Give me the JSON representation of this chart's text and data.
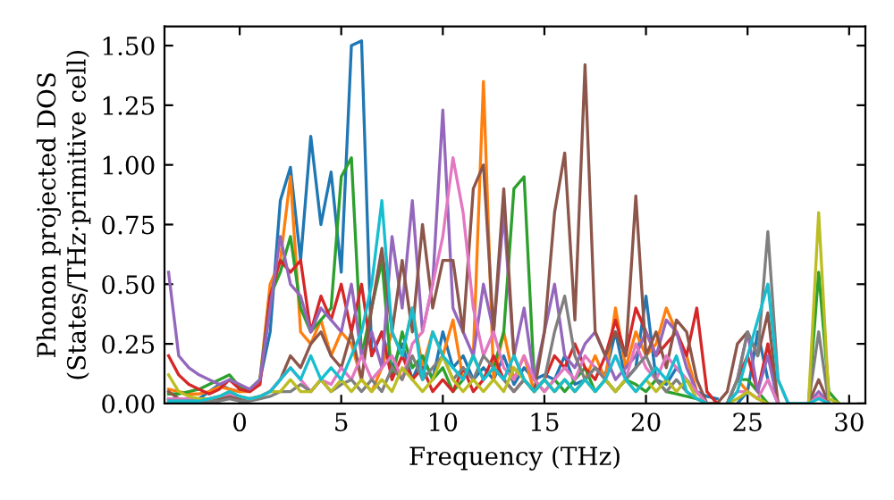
{
  "chart_data": {
    "type": "line",
    "xlabel": "Frequency (THz)",
    "ylabel": "Phonon projected DOS\n(States/THz·primitive cell)",
    "x": [
      -3.5,
      -3,
      -2.5,
      -2,
      -1.5,
      -1,
      -0.5,
      0,
      0.5,
      1,
      1.5,
      2,
      2.5,
      3,
      3.5,
      4,
      4.5,
      5,
      5.5,
      6,
      6.5,
      7,
      7.5,
      8,
      8.5,
      9,
      9.5,
      10,
      10.5,
      11,
      11.5,
      12,
      12.5,
      13,
      13.5,
      14,
      14.5,
      15,
      15.5,
      16,
      16.5,
      17,
      17.5,
      18,
      18.5,
      19,
      19.5,
      20,
      20.5,
      21,
      21.5,
      22,
      22.5,
      23,
      23.5,
      24,
      24.5,
      25,
      25.5,
      26,
      26.5,
      27,
      27.5,
      28,
      28.5,
      29,
      29.5
    ],
    "xlim": [
      -3.7,
      30.8
    ],
    "xticks": [
      0,
      5,
      10,
      15,
      20,
      25,
      30
    ],
    "ylim": [
      0,
      1.58
    ],
    "yticks": [
      {
        "value": 0,
        "label": "0.00"
      },
      {
        "value": 0.25,
        "label": "0.25"
      },
      {
        "value": 0.5,
        "label": "0.50"
      },
      {
        "value": 0.75,
        "label": "0.75"
      },
      {
        "value": 1.0,
        "label": "1.00"
      },
      {
        "value": 1.25,
        "label": "1.25"
      },
      {
        "value": 1.5,
        "label": "1.50"
      }
    ],
    "line_style": "solid",
    "marker": "none",
    "series": [
      {
        "color": "#1f77b4",
        "values": [
          0.02,
          0.01,
          0.01,
          0.02,
          0.05,
          0.08,
          0.06,
          0.05,
          0.06,
          0.1,
          0.3,
          0.85,
          0.99,
          0.6,
          1.12,
          0.75,
          0.97,
          0.55,
          1.5,
          1.52,
          0.2,
          0.3,
          0.15,
          0.25,
          0.1,
          0.2,
          0.1,
          0.3,
          0.15,
          0.2,
          0.1,
          0.15,
          0.1,
          0.2,
          0.08,
          0.15,
          0.1,
          0.12,
          0.1,
          0.2,
          0.08,
          0.1,
          0.15,
          0.12,
          0.3,
          0.1,
          0.15,
          0.45,
          0.1,
          0.08,
          0.15,
          0.1,
          0.05,
          0.03,
          0.02,
          null,
          0,
          0.05,
          0.3,
          0.1,
          0,
          null,
          null,
          null,
          null,
          null,
          null
        ]
      },
      {
        "color": "#ff7f0e",
        "values": [
          0.06,
          0.05,
          0.04,
          0.04,
          0.05,
          0.07,
          0.06,
          0.05,
          0.05,
          0.1,
          0.5,
          0.6,
          0.95,
          0.3,
          0.25,
          0.35,
          0.2,
          0.3,
          0.25,
          0.1,
          0.05,
          0.15,
          0.3,
          0.2,
          0.4,
          0.15,
          0.3,
          0.2,
          0.35,
          0.1,
          0.2,
          1.35,
          0.1,
          0.3,
          0.1,
          0.2,
          0.05,
          0.1,
          0.05,
          0.1,
          0.05,
          0.1,
          0.2,
          0.1,
          0.4,
          0.15,
          0.3,
          0.2,
          0.25,
          0.4,
          0.3,
          0.2,
          0.05,
          0,
          null,
          0,
          0.1,
          0.05,
          0.02,
          0,
          null,
          null,
          null,
          null,
          null,
          null,
          null
        ]
      },
      {
        "color": "#2ca02c",
        "values": [
          0.04,
          0.04,
          0.05,
          0.06,
          0.08,
          0.1,
          0.12,
          0.07,
          0.06,
          0.1,
          0.45,
          0.55,
          0.7,
          0.4,
          0.3,
          0.35,
          0.4,
          0.95,
          1.03,
          0.2,
          0.4,
          0.6,
          0.1,
          0.3,
          0.15,
          0.2,
          0.1,
          0.15,
          0.05,
          0.1,
          0.2,
          0.1,
          0.15,
          0.3,
          0.9,
          0.95,
          0.1,
          0.05,
          0.1,
          0.05,
          0.1,
          0.15,
          0.05,
          0.1,
          0.05,
          0.1,
          0.08,
          0.05,
          0.1,
          0.05,
          0.04,
          0.03,
          0.02,
          0,
          null,
          0,
          0.1,
          0.1,
          0.05,
          0,
          null,
          null,
          null,
          0,
          0.55,
          0.05,
          0
        ]
      },
      {
        "color": "#d62728",
        "values": [
          0.2,
          0.12,
          0.08,
          0.06,
          0.04,
          0.06,
          0.1,
          0.06,
          0.05,
          0.08,
          0.45,
          0.6,
          0.55,
          0.6,
          0.3,
          0.45,
          0.35,
          0.5,
          0.3,
          0.5,
          0.2,
          0.3,
          0.1,
          0.2,
          0.1,
          0.15,
          0.05,
          0.1,
          0.05,
          0.15,
          0.05,
          0.1,
          0.2,
          0.1,
          0.05,
          0.1,
          0.05,
          0.1,
          0.2,
          0.15,
          0.25,
          0.15,
          0.1,
          0.2,
          0.35,
          0.2,
          0.4,
          0.3,
          0.2,
          0.25,
          0.3,
          0.2,
          0.4,
          0.05,
          0,
          null,
          0.1,
          0.2,
          0.05,
          0.25,
          0,
          null,
          null,
          null,
          null,
          null,
          null
        ]
      },
      {
        "color": "#9467bd",
        "values": [
          0.55,
          0.2,
          0.15,
          0.12,
          0.1,
          0.08,
          0.1,
          0.08,
          0.06,
          0.1,
          0.4,
          0.7,
          0.5,
          0.45,
          0.3,
          0.4,
          0.35,
          0.3,
          0.5,
          0.2,
          0.3,
          0.15,
          0.7,
          0.4,
          0.85,
          0.3,
          0.5,
          1.23,
          0.4,
          0.3,
          0.2,
          0.5,
          0.3,
          0.8,
          0.2,
          0.4,
          0.1,
          0.3,
          0.5,
          0.2,
          0.15,
          0.25,
          0.3,
          0.2,
          0.1,
          0.15,
          0.2,
          0.3,
          0.2,
          0.35,
          0.3,
          0.15,
          0.05,
          0,
          null,
          0,
          0.1,
          0.3,
          0.05,
          0.2,
          0,
          null,
          null,
          0,
          0.05,
          0,
          null
        ]
      },
      {
        "color": "#8c564b",
        "values": [
          0.05,
          0.02,
          0.02,
          0.02,
          0.02,
          0.02,
          0.03,
          0.02,
          0.02,
          0.03,
          0.05,
          0.1,
          0.2,
          0.15,
          0.25,
          0.3,
          0.2,
          0.15,
          0.3,
          0.1,
          0.4,
          0.65,
          0.3,
          0.6,
          0.3,
          0.75,
          0.4,
          0.6,
          0.6,
          0.3,
          0.9,
          1.0,
          0.3,
          0.9,
          0.2,
          0.1,
          0.05,
          0.3,
          0.8,
          1.05,
          0.35,
          1.42,
          0.3,
          0.2,
          0.3,
          0.2,
          0.87,
          0.2,
          0.3,
          0.15,
          0.35,
          0.3,
          0.1,
          0,
          0,
          0.05,
          0.25,
          0.3,
          0.2,
          0.38,
          0,
          null,
          null,
          0,
          0.1,
          0,
          null
        ]
      },
      {
        "color": "#e377c2",
        "values": [
          0.02,
          0.02,
          0.02,
          0.02,
          0.02,
          0.03,
          0.04,
          0.03,
          0.02,
          0.03,
          0.05,
          0.1,
          0.15,
          0.1,
          0.05,
          0.1,
          0.08,
          0.15,
          0.1,
          0.2,
          0.1,
          0.15,
          0.2,
          0.1,
          0.25,
          0.3,
          0.5,
          0.7,
          1.03,
          0.8,
          0.4,
          0.2,
          0.3,
          0.15,
          0.1,
          0.2,
          0.1,
          0.05,
          0.1,
          0.15,
          0.1,
          0.2,
          0.15,
          0.1,
          0.2,
          0.1,
          0.25,
          0.15,
          0.1,
          0.2,
          0.15,
          0.1,
          0.05,
          0,
          null,
          0,
          0.05,
          0.05,
          0.02,
          0.1,
          0,
          null,
          null,
          0,
          0.03,
          0,
          null
        ]
      },
      {
        "color": "#7f7f7f",
        "values": [
          0.01,
          0.01,
          0.01,
          0.01,
          0.01,
          0.01,
          0.02,
          0.01,
          0.01,
          0.02,
          0.03,
          0.05,
          0.05,
          0.08,
          0.05,
          0.1,
          0.05,
          0.08,
          0.1,
          0.05,
          0.1,
          0.05,
          0.15,
          0.1,
          0.2,
          0.1,
          0.15,
          0.2,
          0.1,
          0.15,
          0.1,
          0.2,
          0.15,
          0.1,
          0.05,
          0.1,
          0.05,
          0.1,
          0.3,
          0.45,
          0.2,
          0.1,
          0.15,
          0.1,
          0.05,
          0.1,
          0.15,
          0.2,
          0.1,
          0.05,
          0.1,
          0.05,
          0.02,
          0,
          null,
          0,
          0.1,
          0.3,
          0.2,
          0.72,
          0.1,
          0,
          null,
          0,
          0.3,
          0,
          null
        ]
      },
      {
        "color": "#bcbd22",
        "values": [
          0.12,
          0.05,
          0.03,
          0.02,
          0.02,
          0.03,
          0.05,
          0.03,
          0.02,
          0.03,
          0.05,
          0.05,
          0.1,
          0.05,
          0.05,
          0.1,
          0.05,
          0.1,
          0.05,
          0.1,
          0.05,
          0.1,
          0.05,
          0.15,
          0.1,
          0.05,
          0.1,
          0.2,
          0.1,
          0.05,
          0.1,
          0.05,
          0.1,
          0.05,
          0.15,
          0.1,
          0.05,
          0.1,
          0.05,
          0.1,
          0.05,
          0.1,
          0.05,
          0.1,
          0.05,
          0.1,
          0.05,
          0.1,
          0.05,
          0.1,
          0.05,
          0.1,
          0.02,
          0,
          null,
          0,
          0.02,
          0.05,
          0.02,
          0,
          null,
          null,
          null,
          0,
          0.8,
          0.02,
          0
        ]
      },
      {
        "color": "#17becf",
        "values": [
          0.01,
          0.01,
          0.01,
          0.01,
          0.02,
          0.03,
          0.05,
          0.03,
          0.02,
          0.03,
          0.05,
          0.1,
          0.15,
          0.1,
          0.2,
          0.1,
          0.15,
          0.1,
          0.2,
          0.3,
          0.5,
          0.85,
          0.3,
          0.2,
          0.4,
          0.1,
          0.3,
          0.2,
          0.15,
          0.1,
          0.2,
          0.1,
          0.15,
          0.1,
          0.2,
          0.1,
          0.05,
          0.1,
          0.05,
          0.1,
          0.05,
          0.1,
          0.05,
          0.1,
          0.2,
          0.1,
          0.05,
          0.1,
          0.15,
          0.1,
          0.2,
          0.05,
          0.02,
          0,
          null,
          0,
          0.05,
          0.2,
          0.35,
          0.5,
          0.1,
          0,
          0,
          0,
          0.02,
          0,
          null
        ]
      }
    ]
  }
}
